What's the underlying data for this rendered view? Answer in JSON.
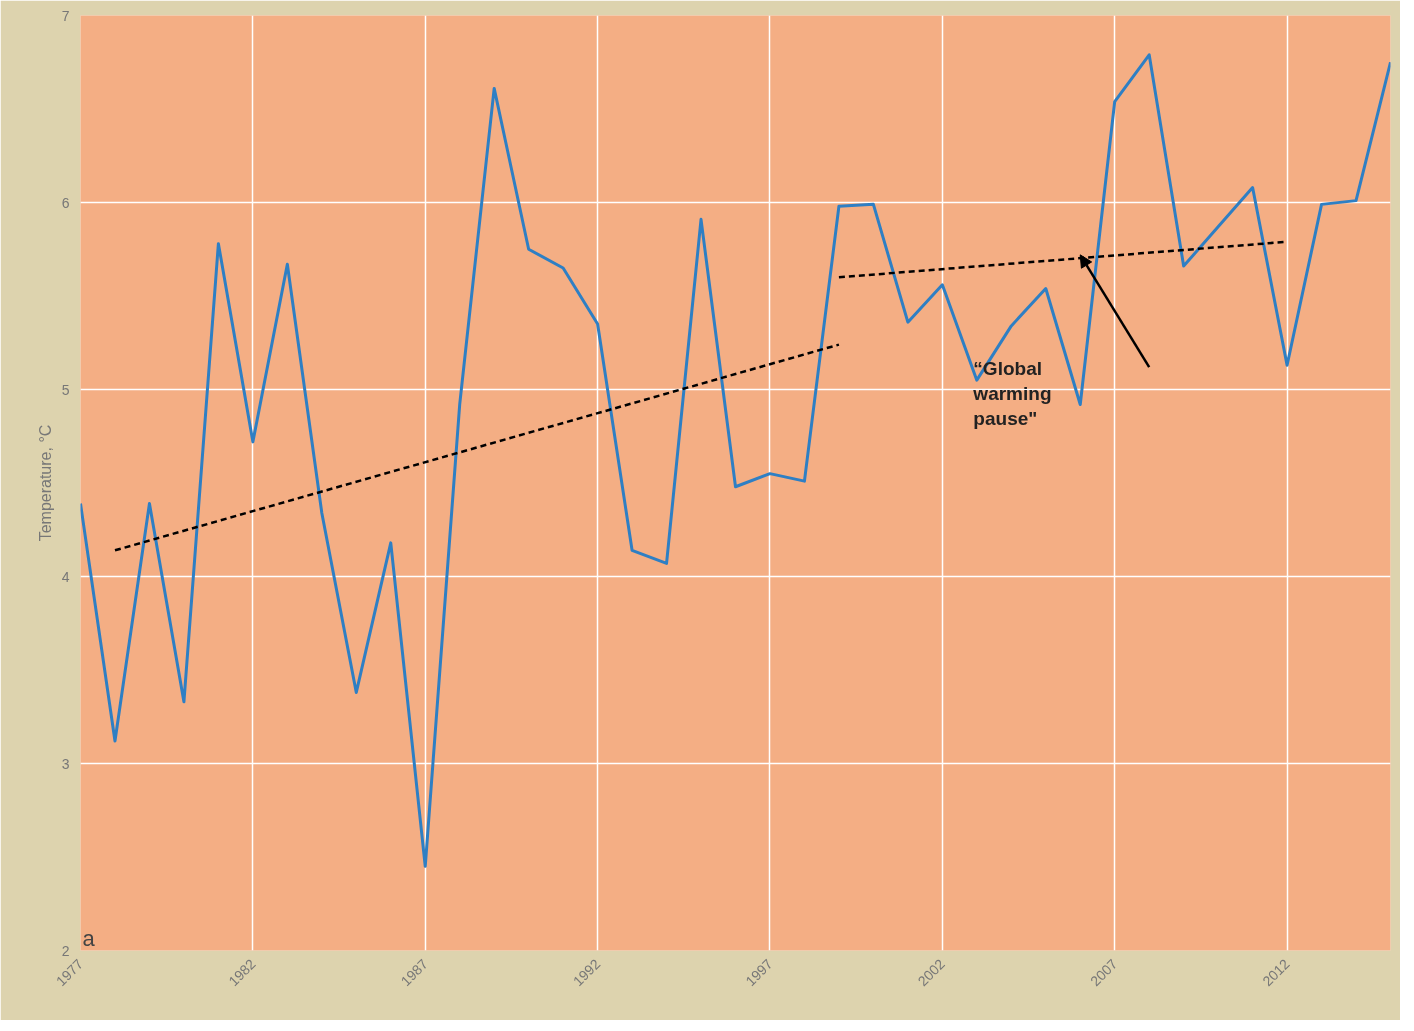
{
  "chart_data": {
    "type": "line",
    "ylabel": "Temperature, °C",
    "x": [
      1977,
      1978,
      1979,
      1980,
      1981,
      1982,
      1983,
      1984,
      1985,
      1986,
      1987,
      1988,
      1989,
      1990,
      1991,
      1992,
      1993,
      1994,
      1995,
      1996,
      1997,
      1998,
      1999,
      2000,
      2001,
      2002,
      2003,
      2004,
      2005,
      2006,
      2007,
      2008,
      2009,
      2010,
      2011,
      2012,
      2013,
      2014,
      2015
    ],
    "series": [
      {
        "color": "#2e7fc4",
        "line_style": "solid",
        "values": [
          4.39,
          3.12,
          4.39,
          3.33,
          5.78,
          4.72,
          5.67,
          4.34,
          3.38,
          4.18,
          2.45,
          4.92,
          6.61,
          5.75,
          5.65,
          5.35,
          4.14,
          4.07,
          5.91,
          4.48,
          4.55,
          4.51,
          5.98,
          5.99,
          5.36,
          5.56,
          5.05,
          5.34,
          5.54,
          4.92,
          6.54,
          6.79,
          5.66,
          5.87,
          6.08,
          5.13,
          5.99,
          6.01,
          6.75
        ]
      },
      {
        "type": "line",
        "color": "#000000",
        "line_style": "dashed",
        "x": [
          1978,
          1999
        ],
        "values": [
          4.14,
          5.24
        ]
      },
      {
        "type": "line",
        "color": "#000000",
        "line_style": "dashed",
        "x": [
          1999,
          2012
        ],
        "values": [
          5.6,
          5.79
        ]
      }
    ],
    "xlim": [
      1977,
      2015
    ],
    "ylim": [
      2,
      7
    ],
    "xticks": [
      1977,
      1982,
      1987,
      1992,
      1997,
      2002,
      2007,
      2012
    ],
    "yticks": [
      2,
      3,
      4,
      5,
      6,
      7
    ],
    "grid": true,
    "annotations": [
      "“Global\nwarming\npause\"",
      "a"
    ]
  }
}
